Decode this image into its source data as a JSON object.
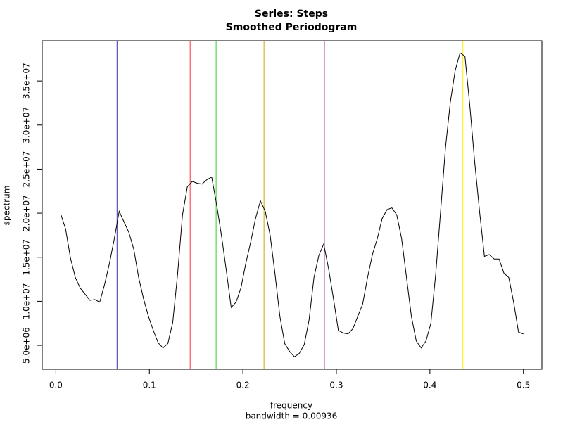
{
  "chart_data": {
    "type": "line",
    "title": "Series: Steps",
    "subtitle": "Smoothed Periodogram",
    "x_label": "frequency",
    "x_sublabel": "bandwidth = 0.00936",
    "y_label": "spectrum",
    "x": [
      0.00521,
      0.01042,
      0.01563,
      0.02083,
      0.02604,
      0.03125,
      0.03646,
      0.04167,
      0.04688,
      0.05208,
      0.05729,
      0.0625,
      0.06771,
      0.07292,
      0.07813,
      0.08333,
      0.08854,
      0.09375,
      0.09896,
      0.10417,
      0.10938,
      0.11458,
      0.11979,
      0.125,
      0.13021,
      0.13542,
      0.14063,
      0.14583,
      0.15104,
      0.15625,
      0.16146,
      0.16667,
      0.17188,
      0.17708,
      0.18229,
      0.1875,
      0.19271,
      0.19792,
      0.20313,
      0.20833,
      0.21354,
      0.21875,
      0.22396,
      0.22917,
      0.23438,
      0.23958,
      0.24479,
      0.25,
      0.25521,
      0.26042,
      0.26563,
      0.27083,
      0.27604,
      0.28125,
      0.28646,
      0.29167,
      0.29688,
      0.30208,
      0.30729,
      0.3125,
      0.31771,
      0.32292,
      0.32813,
      0.33333,
      0.33854,
      0.34375,
      0.34896,
      0.35417,
      0.35938,
      0.36458,
      0.36979,
      0.375,
      0.38021,
      0.38542,
      0.39063,
      0.39583,
      0.40104,
      0.40625,
      0.41146,
      0.41667,
      0.42188,
      0.42708,
      0.43229,
      0.4375,
      0.44271,
      0.44792,
      0.45313,
      0.45833,
      0.46354,
      0.46875,
      0.47396,
      0.47917,
      0.48438,
      0.48958,
      0.49479,
      0.5
    ],
    "series": [
      {
        "color": "#000000",
        "values": [
          19900000,
          18200000,
          14900000,
          12700000,
          11500000,
          10800000,
          10100000,
          10200000,
          9900000,
          11900000,
          14300000,
          17100000,
          20200000,
          19000000,
          17800000,
          15900000,
          12700000,
          10300000,
          8300000,
          6700000,
          5300000,
          4700000,
          5200000,
          7600000,
          13100000,
          19800000,
          23000000,
          23600000,
          23400000,
          23300000,
          23800000,
          24100000,
          21000000,
          17500000,
          13500000,
          9300000,
          9900000,
          11500000,
          14300000,
          16700000,
          19400000,
          21400000,
          20200000,
          17500000,
          13100000,
          8300000,
          5200000,
          4300000,
          3700000,
          4100000,
          5100000,
          7900000,
          12700000,
          15200000,
          16500000,
          13700000,
          10300000,
          6700000,
          6400000,
          6300000,
          6900000,
          8300000,
          9700000,
          12700000,
          15300000,
          17100000,
          19400000,
          20400000,
          20600000,
          19800000,
          17100000,
          12700000,
          8300000,
          5500000,
          4700000,
          5500000,
          7500000,
          13100000,
          20200000,
          27400000,
          32600000,
          36200000,
          38200000,
          37800000,
          32200000,
          25800000,
          20200000,
          15100000,
          15300000,
          14800000,
          14800000,
          13200000,
          12700000,
          9900000,
          6500000,
          6300000
        ]
      }
    ],
    "vlines": [
      {
        "x": 0.0654,
        "color": "#3333aa"
      },
      {
        "x": 0.1436,
        "color": "#ff3333"
      },
      {
        "x": 0.1714,
        "color": "#33cc33"
      },
      {
        "x": 0.2226,
        "color": "#ccaa00"
      },
      {
        "x": 0.2872,
        "color": "#993399"
      },
      {
        "x": 0.4353,
        "color": "#ffee00"
      }
    ],
    "xlim": [
      -0.0146,
      0.5198
    ],
    "ylim": [
      2290000,
      39560000
    ],
    "xticks": [
      {
        "value": 0,
        "label": "0.0"
      },
      0.1,
      0.2,
      0.3,
      0.4,
      0.5
    ],
    "yticks": [
      {
        "value": 5000000,
        "label": "5.0e+06"
      },
      {
        "value": 10000000,
        "label": "1.0e+07"
      },
      {
        "value": 15000000,
        "label": "1.5e+07"
      },
      {
        "value": 20000000,
        "label": "2.0e+07"
      },
      {
        "value": 25000000,
        "label": "2.5e+07"
      },
      {
        "value": 30000000,
        "label": "3.0e+07"
      },
      {
        "value": 35000000,
        "label": "3.5e+07"
      }
    ]
  }
}
